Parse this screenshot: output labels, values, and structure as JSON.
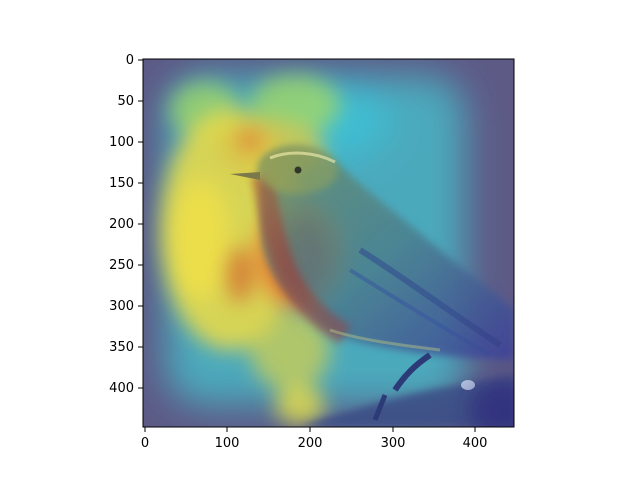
{
  "figure": {
    "kind": "attention heatmap overlay on photograph",
    "subject": "bird perched on branch",
    "colormap": "jet",
    "background_color": "#ffffff"
  },
  "axes": {
    "x_ticks": [
      "0",
      "100",
      "200",
      "300",
      "400"
    ],
    "y_ticks": [
      "0",
      "50",
      "100",
      "150",
      "200",
      "250",
      "300",
      "350",
      "400"
    ],
    "x_range": [
      0,
      448
    ],
    "y_range": [
      0,
      448
    ],
    "y_inverted": true
  }
}
